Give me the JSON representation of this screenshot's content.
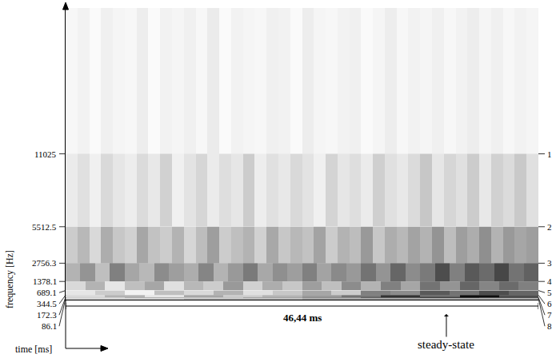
{
  "chart_data": {
    "type": "heatmap",
    "xlabel": "time [ms]",
    "ylabel": "frequency [Hz]",
    "xlim": [
      0,
      46.44
    ],
    "ylim": [
      0,
      22050
    ],
    "yticks": [
      11025,
      5512.5,
      2756.3,
      1378.1,
      689.1,
      344.5,
      172.3,
      86.1
    ],
    "band_labels": [
      {
        "value": 11025,
        "label": "1"
      },
      {
        "value": 5512.5,
        "label": "2"
      },
      {
        "value": 2756.3,
        "label": "3"
      },
      {
        "value": 1378.1,
        "label": "4"
      },
      {
        "value": 689.1,
        "label": "5"
      },
      {
        "value": 344.5,
        "label": "6"
      },
      {
        "value": 172.3,
        "label": "7"
      },
      {
        "value": 86.1,
        "label": "8"
      }
    ],
    "tick_labels": "y",
    "grid": false,
    "zlim": [
      0,
      1
    ],
    "span": {
      "label": "46,44 ms",
      "from": 0,
      "to": 46.44
    },
    "annotation": {
      "text": "steady-state",
      "x": 37.4
    },
    "bands": [
      {
        "lo": 11025,
        "hi": 22050,
        "cells": [
          0.03,
          0.05,
          0.02,
          0.06,
          0.04,
          0.03,
          0.07,
          0.02,
          0.05,
          0.04,
          0.06,
          0.03,
          0.08,
          0.02,
          0.05,
          0.04,
          0.03,
          0.06,
          0.05,
          0.02,
          0.07,
          0.04,
          0.03,
          0.05,
          0.06,
          0.02,
          0.04,
          0.07,
          0.03,
          0.05,
          0.04,
          0.06,
          0.03,
          0.05,
          0.07,
          0.04,
          0.06,
          0.03,
          0.05,
          0.04
        ]
      },
      {
        "lo": 5512.5,
        "hi": 11025,
        "cells": [
          0.08,
          0.12,
          0.06,
          0.15,
          0.1,
          0.07,
          0.14,
          0.09,
          0.18,
          0.06,
          0.11,
          0.16,
          0.08,
          0.13,
          0.1,
          0.2,
          0.07,
          0.12,
          0.09,
          0.15,
          0.11,
          0.06,
          0.17,
          0.1,
          0.13,
          0.08,
          0.19,
          0.12,
          0.09,
          0.14,
          0.22,
          0.1,
          0.16,
          0.12,
          0.2,
          0.09,
          0.18,
          0.14,
          0.21,
          0.12
        ]
      },
      {
        "lo": 2756.3,
        "hi": 5512.5,
        "cells": [
          0.2,
          0.28,
          0.15,
          0.32,
          0.22,
          0.18,
          0.35,
          0.24,
          0.2,
          0.3,
          0.16,
          0.26,
          0.38,
          0.2,
          0.25,
          0.3,
          0.18,
          0.34,
          0.22,
          0.28,
          0.24,
          0.36,
          0.2,
          0.3,
          0.26,
          0.4,
          0.22,
          0.32,
          0.28,
          0.36,
          0.3,
          0.42,
          0.26,
          0.38,
          0.32,
          0.44,
          0.3,
          0.4,
          0.35,
          0.38
        ]
      },
      {
        "lo": 1378.1,
        "hi": 2756.3,
        "cells": [
          0.3,
          0.42,
          0.25,
          0.5,
          0.35,
          0.28,
          0.45,
          0.38,
          0.32,
          0.48,
          0.3,
          0.4,
          0.52,
          0.34,
          0.44,
          0.38,
          0.5,
          0.36,
          0.46,
          0.4,
          0.55,
          0.42,
          0.6,
          0.45,
          0.52,
          0.7,
          0.5,
          0.65,
          0.58,
          0.72,
          0.55,
          0.62
        ]
      },
      {
        "lo": 689.1,
        "hi": 1378.1,
        "cells": [
          0.15,
          0.3,
          0.1,
          0.25,
          0.35,
          0.12,
          0.28,
          0.2,
          0.4,
          0.18,
          0.32,
          0.22,
          0.38,
          0.25,
          0.45,
          0.3,
          0.5,
          0.35,
          0.55,
          0.42,
          0.6,
          0.48,
          0.58,
          0.5
        ]
      },
      {
        "lo": 344.5,
        "hi": 689.1,
        "cells": [
          0.1,
          0.2,
          0.05,
          0.25,
          0.15,
          0.3,
          0.12,
          0.22,
          0.35,
          0.2,
          0.5,
          0.45,
          0.65,
          0.55,
          0.7,
          0.6
        ]
      },
      {
        "lo": 172.3,
        "hi": 344.5,
        "cells": [
          0.15,
          0.3,
          0.1,
          0.35,
          0.2,
          0.3,
          0.4,
          0.55,
          0.8,
          0.6,
          0.95,
          0.7
        ]
      },
      {
        "lo": 86.1,
        "hi": 172.3,
        "cells": [
          0.2,
          0.35,
          0.25,
          0.4,
          0.5,
          0.7,
          0.85,
          0.75
        ]
      },
      {
        "lo": 0,
        "hi": 86.1,
        "cells": [
          0.3,
          0.45,
          0.6,
          0.55
        ]
      }
    ]
  }
}
